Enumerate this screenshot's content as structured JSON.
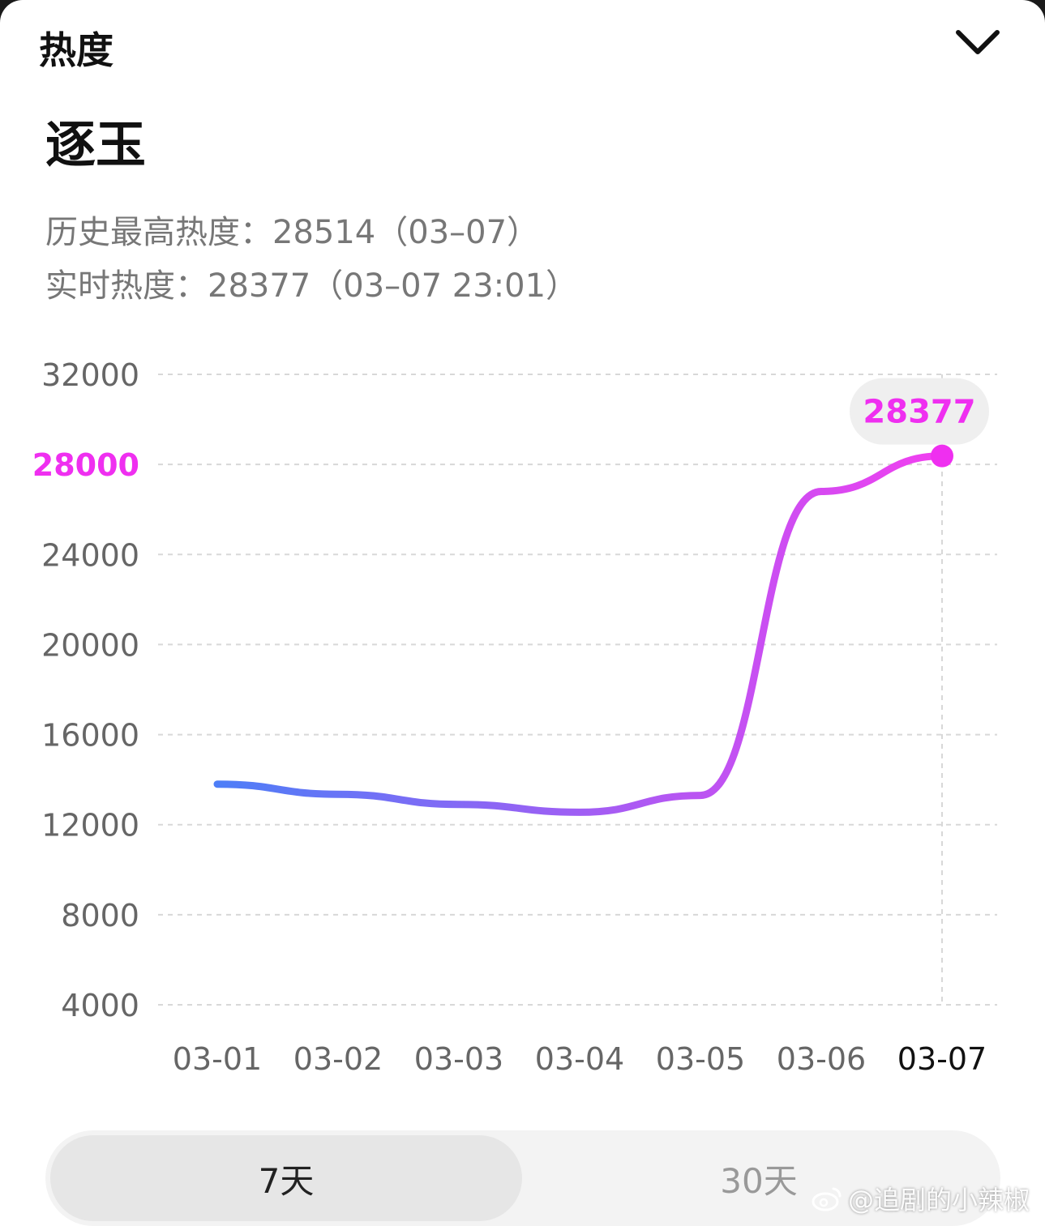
{
  "header": {
    "title": "热度"
  },
  "drama": {
    "title": "逐玉"
  },
  "stats": {
    "peak_label": "历史最高热度：",
    "peak_value": "28514",
    "peak_date": "（03–07）",
    "live_label": "实时热度：",
    "live_value": "28377",
    "live_time": "（03–07 23:01）"
  },
  "chart_data": {
    "type": "line",
    "title": "",
    "xlabel": "",
    "ylabel": "",
    "categories": [
      "03-01",
      "03-02",
      "03-03",
      "03-04",
      "03-05",
      "03-06",
      "03-07"
    ],
    "values": [
      13800,
      13350,
      12900,
      12550,
      13300,
      26800,
      28377
    ],
    "y_ticks": [
      4000,
      8000,
      12000,
      16000,
      20000,
      24000,
      28000,
      32000
    ],
    "ylim": [
      4000,
      32000
    ],
    "highlight_tick": "28000",
    "selected_category": "03-07",
    "tooltip_value": "28377",
    "grid": true,
    "colors": {
      "line_start": "#4d7ef7",
      "line_end": "#f23ff0",
      "highlight": "#ef2ff0"
    }
  },
  "tabs": [
    {
      "label": "7天",
      "active": true
    },
    {
      "label": "30天",
      "active": false
    }
  ],
  "watermark": {
    "text": "@追剧的小辣椒"
  }
}
